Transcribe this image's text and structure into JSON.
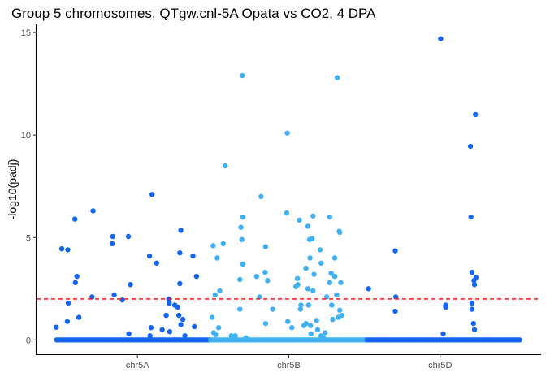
{
  "chart_data": {
    "type": "scatter",
    "title": "Group 5 chromosomes, QTgw.cnl-5A Opata vs CO2, 4 DPA",
    "xlabel": "",
    "ylabel": "-log10(padj)",
    "ylim": [
      -0.7,
      15.4
    ],
    "yticks": [
      "0",
      "5",
      "10",
      "15"
    ],
    "categories": [
      "chr5A",
      "chr5B",
      "chr5D"
    ],
    "xlim": [
      0,
      100
    ],
    "category_centers": [
      20,
      50,
      80
    ],
    "threshold": {
      "value": 2,
      "color": "#ff0000",
      "style": "dashed"
    },
    "colors": {
      "chr5A": "#1466f0",
      "chr5B": "#40b0f5",
      "chr5D": "#1466f0"
    },
    "grid": false,
    "legend": "none",
    "series": [
      {
        "chromosome": "chr5A",
        "baseline_x_range": [
          4,
          34.5
        ],
        "points": [
          [
            3.9,
            0.62
          ],
          [
            5,
            4.45
          ],
          [
            6.2,
            4.4
          ],
          [
            6.3,
            1.8
          ],
          [
            6.1,
            0.9
          ],
          [
            7.6,
            5.9
          ],
          [
            7.7,
            2.8
          ],
          [
            8,
            3.1
          ],
          [
            8.4,
            1.1
          ],
          [
            11.2,
            6.3
          ],
          [
            11,
            2.1
          ],
          [
            15.1,
            5.05
          ],
          [
            15,
            4.7
          ],
          [
            15.4,
            2.2
          ],
          [
            17,
            1.95
          ],
          [
            18.2,
            5.05
          ],
          [
            18.6,
            2.7
          ],
          [
            18.3,
            0.3
          ],
          [
            22.4,
            4.1
          ],
          [
            22.9,
            7.1
          ],
          [
            22.7,
            0.6
          ],
          [
            22.5,
            0.2
          ],
          [
            23.8,
            3.75
          ],
          [
            24.9,
            0.5
          ],
          [
            25.7,
            1.2
          ],
          [
            26.2,
            2.0
          ],
          [
            26.3,
            1.8
          ],
          [
            26.4,
            0.4
          ],
          [
            27.4,
            1.7
          ],
          [
            28,
            1.6
          ],
          [
            28.4,
            2.75
          ],
          [
            28.2,
            1.2
          ],
          [
            28.6,
            5.35
          ],
          [
            28.4,
            4.25
          ],
          [
            28.6,
            0.75
          ],
          [
            29,
            1.0
          ],
          [
            29.4,
            0.2
          ],
          [
            31,
            4.1
          ],
          [
            31.3,
            0.65
          ],
          [
            31.7,
            3.1
          ]
        ]
      },
      {
        "chromosome": "chr5B",
        "baseline_x_range": [
          34.5,
          65.5
        ],
        "points": [
          [
            34.8,
            1.1
          ],
          [
            35,
            4.6
          ],
          [
            35.1,
            0.35
          ],
          [
            35.4,
            2.2
          ],
          [
            35.5,
            0.25
          ],
          [
            35.8,
            4.0
          ],
          [
            36.3,
            2.4
          ],
          [
            36.1,
            0.6
          ],
          [
            37.4,
            8.5
          ],
          [
            37,
            4.7
          ],
          [
            38.6,
            0.2
          ],
          [
            39.4,
            0.2
          ],
          [
            40.3,
            1.5
          ],
          [
            40.5,
            5.5
          ],
          [
            40.3,
            2.95
          ],
          [
            40.8,
            12.9
          ],
          [
            40.9,
            6.0
          ],
          [
            40.7,
            4.9
          ],
          [
            40.9,
            3.7
          ],
          [
            41.5,
            0.1
          ],
          [
            43.6,
            3.1
          ],
          [
            44.5,
            7.0
          ],
          [
            44.2,
            2.1
          ],
          [
            45.4,
            4.55
          ],
          [
            45.3,
            3.3
          ],
          [
            45.8,
            2.9
          ],
          [
            45.4,
            0.8
          ],
          [
            46.8,
            1.5
          ],
          [
            49.7,
            10.1
          ],
          [
            49.6,
            6.2
          ],
          [
            49.8,
            0.9
          ],
          [
            50.6,
            0.6
          ],
          [
            51.4,
            2.6
          ],
          [
            51.7,
            3.0
          ],
          [
            51.8,
            2.7
          ],
          [
            52.1,
            5.85
          ],
          [
            52.4,
            1.7
          ],
          [
            52.3,
            1.5
          ],
          [
            53,
            0.7
          ],
          [
            53.4,
            0.8
          ],
          [
            53.4,
            3.5
          ],
          [
            53.8,
            5.55
          ],
          [
            53.8,
            2.5
          ],
          [
            53.9,
            1.7
          ],
          [
            54.1,
            4.9
          ],
          [
            54.2,
            4.0
          ],
          [
            54.3,
            0.7
          ],
          [
            54.4,
            0.3
          ],
          [
            54.8,
            6.05
          ],
          [
            54.6,
            4.95
          ],
          [
            54.8,
            2.4
          ],
          [
            55,
            3.2
          ],
          [
            55.5,
            0.95
          ],
          [
            55.7,
            0.5
          ],
          [
            56.2,
            4.4
          ],
          [
            56.4,
            3.75
          ],
          [
            56.4,
            0.2
          ],
          [
            56.9,
            0.1
          ],
          [
            57.2,
            0.35
          ],
          [
            57.5,
            2.1
          ],
          [
            58.1,
            6.0
          ],
          [
            58.4,
            3.25
          ],
          [
            58.1,
            2.8
          ],
          [
            58.5,
            1.7
          ],
          [
            58.7,
            1.0
          ],
          [
            59.1,
            4.0
          ],
          [
            59.1,
            3.1
          ],
          [
            59.5,
            2.2
          ],
          [
            59.6,
            12.8
          ],
          [
            59.8,
            1.1
          ],
          [
            60,
            5.3
          ],
          [
            60.1,
            5.25
          ],
          [
            60.3,
            2.8
          ],
          [
            60.1,
            1.45
          ],
          [
            60.5,
            1.2
          ]
        ]
      },
      {
        "chromosome": "chr5D",
        "baseline_x_range": [
          65.5,
          96
        ],
        "points": [
          [
            65.8,
            2.5
          ],
          [
            71.1,
            4.35
          ],
          [
            71.2,
            2.1
          ],
          [
            71.1,
            1.4
          ],
          [
            80.1,
            14.7
          ],
          [
            80.6,
            0.3
          ],
          [
            81.1,
            1.6
          ],
          [
            81.1,
            1.7
          ],
          [
            86,
            9.45
          ],
          [
            86.1,
            6.0
          ],
          [
            86.3,
            3.3
          ],
          [
            86.3,
            1.8
          ],
          [
            86.3,
            1.5
          ],
          [
            86.7,
            2.9
          ],
          [
            86.8,
            2.7
          ],
          [
            86.6,
            0.8
          ],
          [
            87,
            11.0
          ],
          [
            86.8,
            0.5
          ],
          [
            87.1,
            3.05
          ]
        ]
      }
    ]
  }
}
